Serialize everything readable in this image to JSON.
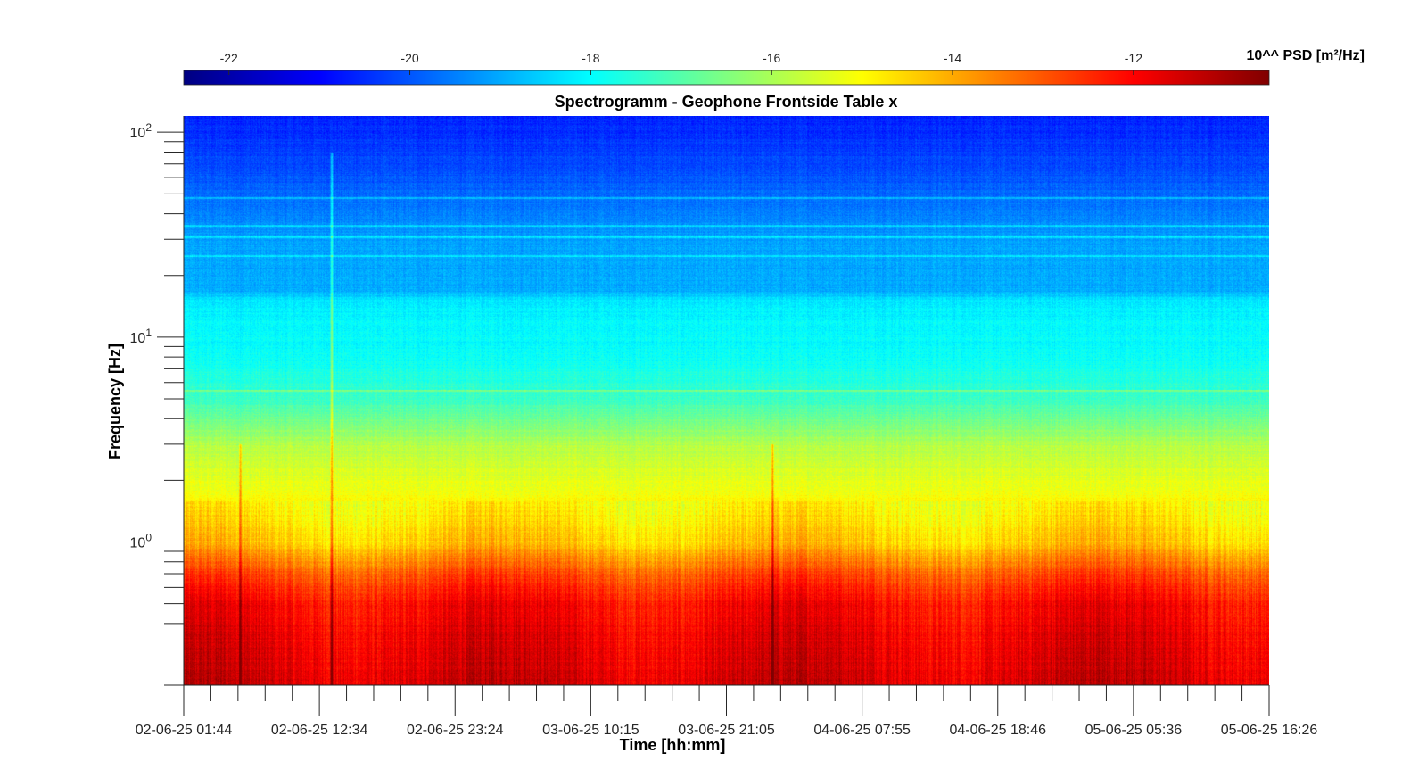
{
  "chart_data": {
    "type": "heatmap",
    "title": "Spectrogramm - Geophone Frontside Table x",
    "xlabel": "Time [hh:mm]",
    "ylabel": "Frequency [Hz]",
    "colorbar_label": "10^^ PSD [m²/Hz]",
    "colorbar_ticks": [
      -22,
      -20,
      -18,
      -16,
      -14,
      -12
    ],
    "colorbar_range": [
      -22.5,
      -10.5
    ],
    "colormap": "jet",
    "y_scale": "log",
    "ylim": [
      0.2,
      120
    ],
    "y_major_ticks": [
      {
        "value": 100,
        "base": "10",
        "exp": "2"
      },
      {
        "value": 10,
        "base": "10",
        "exp": "1"
      },
      {
        "value": 1,
        "base": "10",
        "exp": "0"
      }
    ],
    "x_tick_labels": [
      "02-06-25 01:44",
      "02-06-25 12:34",
      "02-06-25 23:24",
      "03-06-25 10:15",
      "03-06-25 21:05",
      "04-06-25 07:55",
      "04-06-25 18:46",
      "05-06-25 05:36",
      "05-06-25 16:26"
    ],
    "x_range_hours": [
      0,
      86.7
    ],
    "psd_profile": [
      {
        "freq_hz": 120,
        "log10_psd": -20.6
      },
      {
        "freq_hz": 60,
        "log10_psd": -20.0
      },
      {
        "freq_hz": 30,
        "log10_psd": -19.1
      },
      {
        "freq_hz": 17,
        "log10_psd": -19.0
      },
      {
        "freq_hz": 15,
        "log10_psd": -18.2
      },
      {
        "freq_hz": 8,
        "log10_psd": -17.9
      },
      {
        "freq_hz": 5,
        "log10_psd": -17.3
      },
      {
        "freq_hz": 3,
        "log10_psd": -15.9
      },
      {
        "freq_hz": 1.5,
        "log10_psd": -14.9
      },
      {
        "freq_hz": 1,
        "log10_psd": -14.4
      },
      {
        "freq_hz": 0.7,
        "log10_psd": -12.9
      },
      {
        "freq_hz": 0.5,
        "log10_psd": -12.0
      },
      {
        "freq_hz": 0.2,
        "log10_psd": -11.5
      }
    ],
    "narrowband_lines_hz": [
      48,
      35,
      31,
      25,
      5.5
    ],
    "transient_events": [
      {
        "time_hours": 4.5,
        "fmax_hz": 3.0
      },
      {
        "time_hours": 11.8,
        "fmax_hz": 80
      },
      {
        "time_hours": 47.0,
        "fmax_hz": 3.0
      }
    ],
    "grid": false,
    "colorbar_position": "top"
  }
}
